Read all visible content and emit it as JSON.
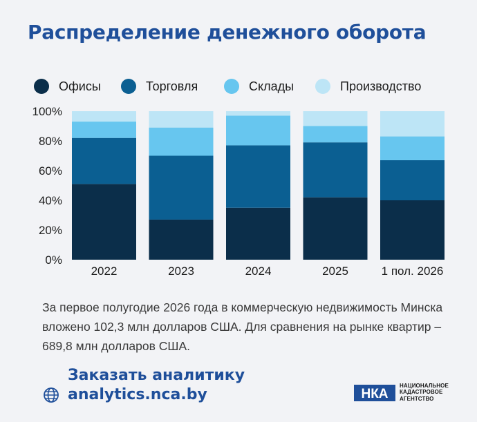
{
  "title": "Распределение денежного оборота",
  "legend": [
    {
      "label": "Офисы",
      "color": "#0b2e4a"
    },
    {
      "label": "Торговля",
      "color": "#0b5f92"
    },
    {
      "label": "Склады",
      "color": "#67c6ef"
    },
    {
      "label": "Производство",
      "color": "#bde5f6"
    }
  ],
  "chart_data": {
    "type": "bar",
    "stacked": true,
    "categories": [
      "2022",
      "2023",
      "2024",
      "2025",
      "1 пол. 2026"
    ],
    "series": [
      {
        "name": "Офисы",
        "values": [
          51,
          27,
          35,
          42,
          40
        ],
        "color": "#0b2e4a"
      },
      {
        "name": "Торговля",
        "values": [
          31,
          43,
          42,
          37,
          27
        ],
        "color": "#0b5f92"
      },
      {
        "name": "Склады",
        "values": [
          11,
          19,
          20,
          11,
          16
        ],
        "color": "#67c6ef"
      },
      {
        "name": "Производство",
        "values": [
          7,
          11,
          3,
          10,
          17
        ],
        "color": "#bde5f6"
      }
    ],
    "y_ticks": [
      "0%",
      "20%",
      "40%",
      "60%",
      "80%",
      "100%"
    ],
    "ylim": [
      0,
      100
    ],
    "legend_position": "top"
  },
  "description": "За первое полугодие 2026 года в коммерческую недвижимость Минска вложено 102,3 млн долларов США. Для сравнения на рынке квартир – 689,8 млн долларов США.",
  "cta": {
    "line1": "Заказать аналитику",
    "line2": "analytics.nca.by",
    "icon": "globe-icon"
  },
  "logo": {
    "mark_text": "НКА",
    "line1": "НАЦИОНАЛЬНОЕ",
    "line2": "КАДАСТРОВОЕ",
    "line3": "АГЕНТСТВО"
  }
}
